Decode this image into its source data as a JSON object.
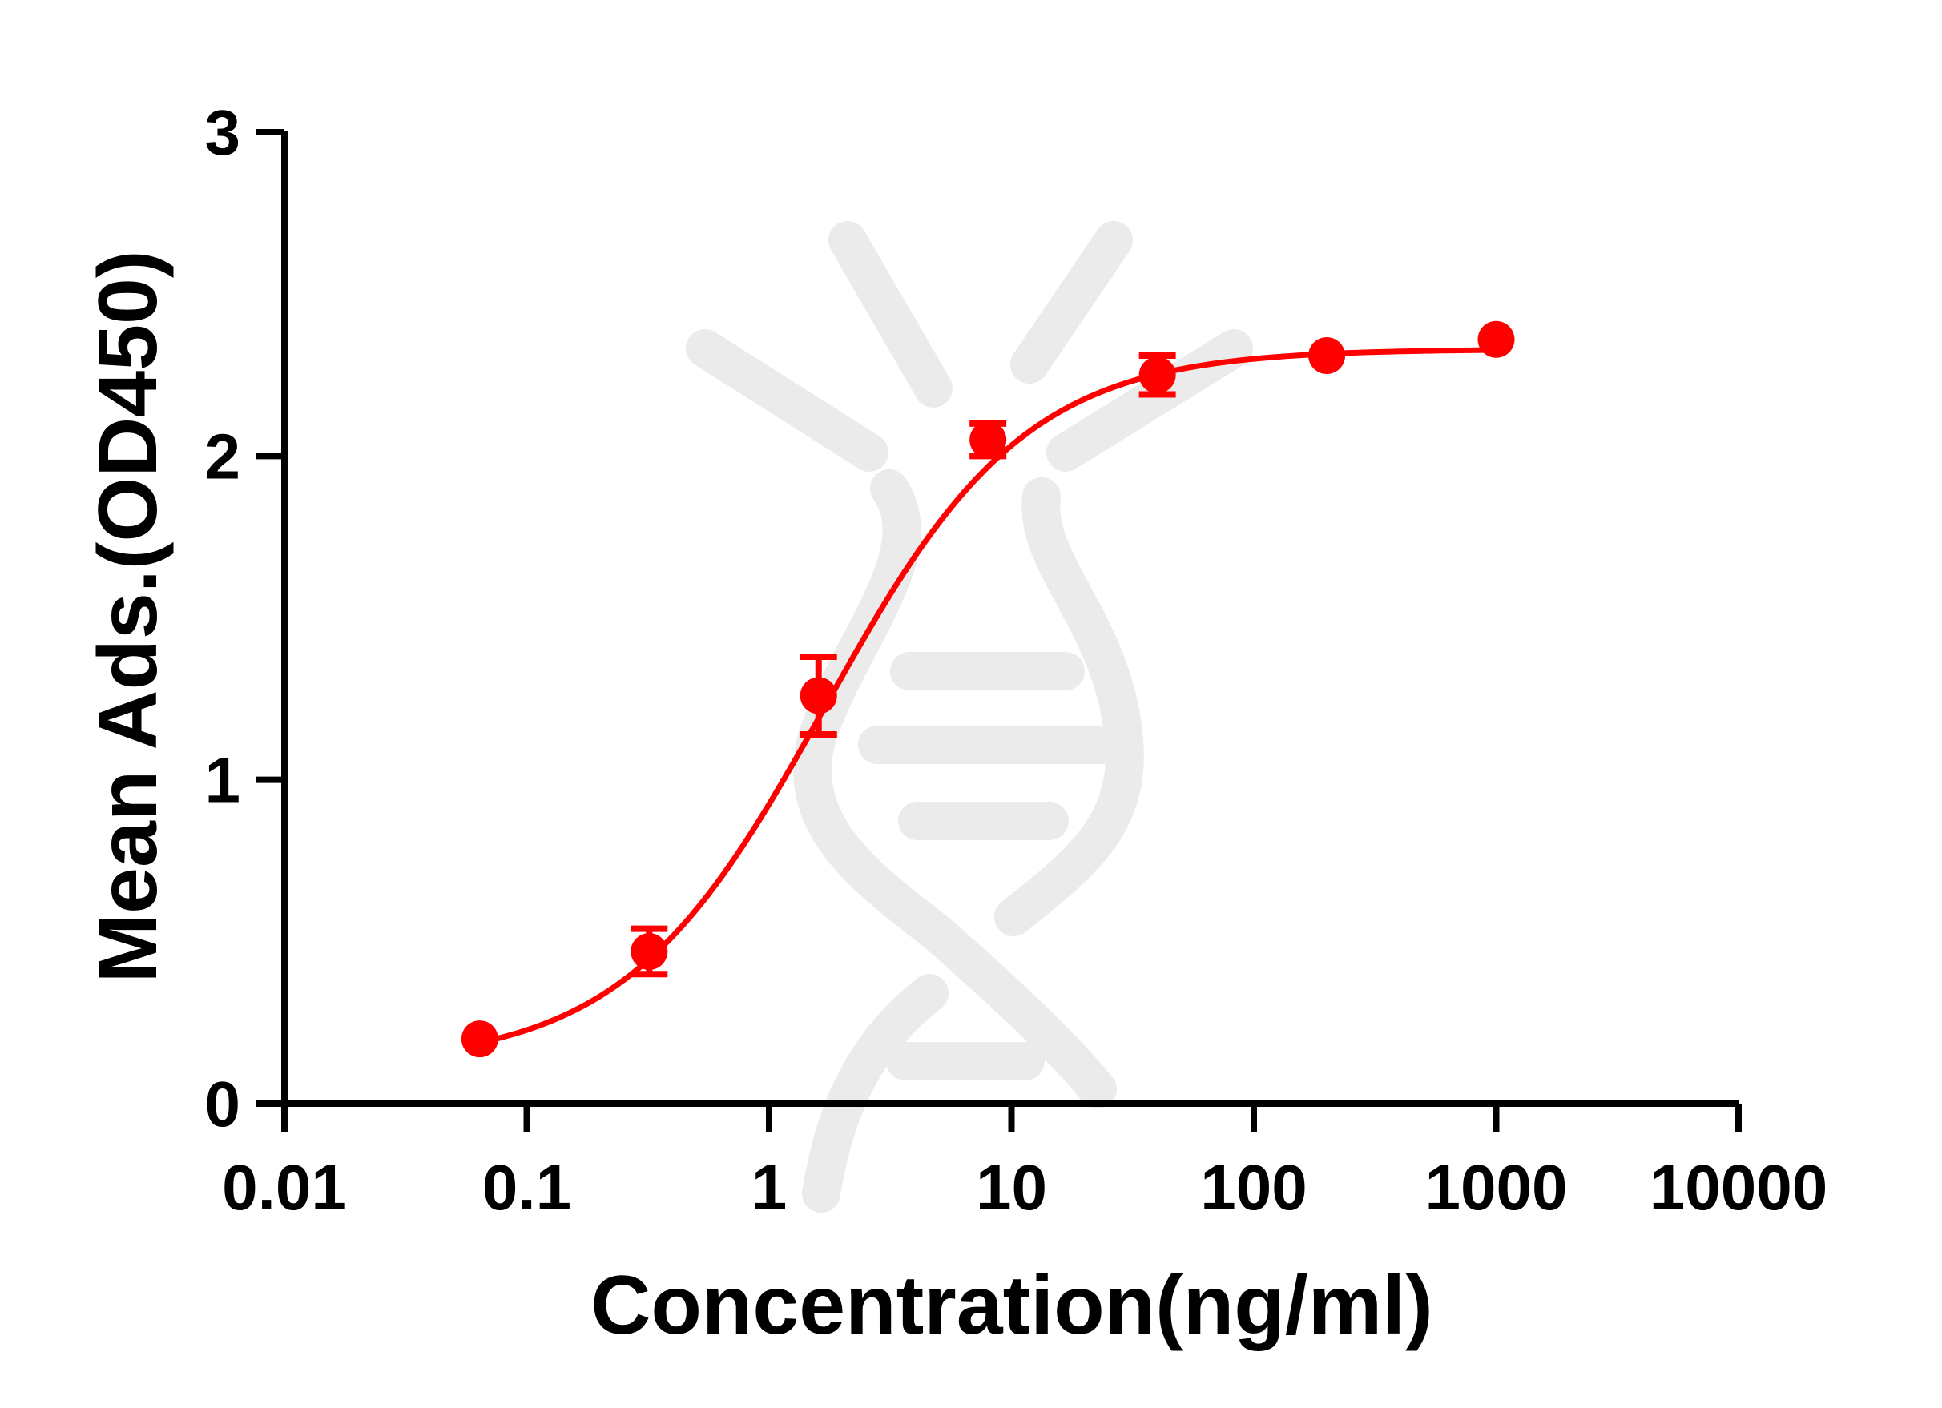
{
  "chart_data": {
    "type": "scatter",
    "xlabel": "Concentration(ng/ml)",
    "ylabel": "Mean Ads.(OD450)",
    "xscale": "log",
    "xlim": [
      0.01,
      10000
    ],
    "ylim": [
      0,
      3
    ],
    "x_ticks": [
      "0.01",
      "0.1",
      "1",
      "10",
      "100",
      "1000",
      "10000"
    ],
    "y_ticks": [
      "0",
      "1",
      "2",
      "3"
    ],
    "grid": false,
    "legend": "none",
    "color": "#ff0000",
    "watermark": "dna-helix-watermark",
    "series": [
      {
        "x": [
          0.064,
          0.32,
          1.6,
          8,
          40,
          200,
          1000
        ],
        "y": [
          0.2,
          0.47,
          1.26,
          2.05,
          2.25,
          2.31,
          2.36
        ],
        "error": [
          0,
          0.07,
          0.12,
          0.05,
          0.06,
          0,
          0
        ],
        "fit": "4PL sigmoid",
        "fit_params": {
          "bottom": 0.12,
          "top": 2.33,
          "ec50": 1.7,
          "hill": 1.05
        }
      }
    ]
  }
}
